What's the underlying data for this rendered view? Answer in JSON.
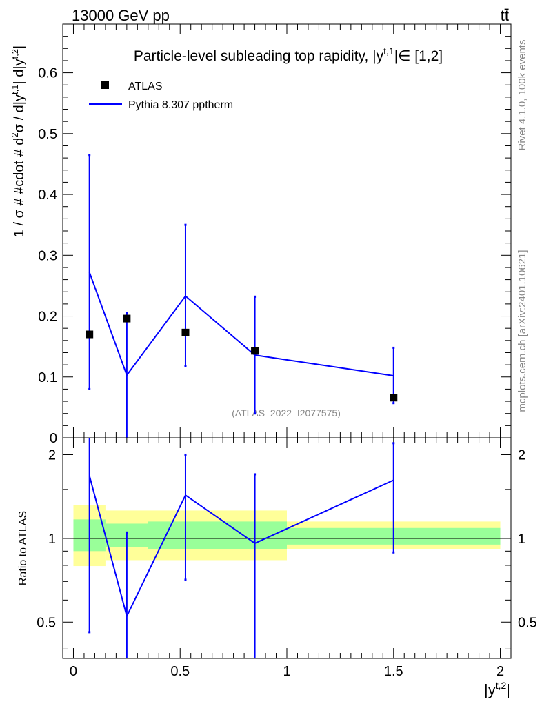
{
  "header": {
    "energy_label": "13000 GeV pp",
    "process_label": "tt̄"
  },
  "side_text": {
    "rivet": "Rivet 4.1.0,  100k events",
    "mcplots": "mcplots.cern.ch [arXiv:2401.10621]"
  },
  "watermark": "(ATLAS_2022_I2077575)",
  "chart_data": [
    {
      "panel": "main",
      "type": "scatter",
      "title": "Particle-level subleading top rapidity, |y^{t,1}|∈ [1,2]",
      "title_parts": {
        "prefix": "Particle-level subleading top rapidity, |y",
        "sup": "t,1",
        "suffix": "|∈ [1,2]"
      },
      "ylabel": "1 / σ # #cdot # d²σ / d|y^{t,1}| d|y^{t,2}|",
      "ylabel_parts": {
        "a": "1 / σ # #cdot # d",
        "sup1": "2",
        "b": "σ / d|y",
        "sup2": "t,1",
        "c": "| d|y",
        "sup3": "t,2",
        "d": "|"
      },
      "xlim": [
        -0.05,
        2.05
      ],
      "ylim": [
        0,
        0.68
      ],
      "yticks": [
        0,
        0.1,
        0.2,
        0.3,
        0.4,
        0.5,
        0.6
      ],
      "ytick_labels": [
        "0",
        "0.1",
        "0.2",
        "0.3",
        "0.4",
        "0.5",
        "0.6"
      ],
      "legend": {
        "position": "top-left",
        "entries": [
          {
            "label": "ATLAS",
            "marker": "square",
            "color": "#000000"
          },
          {
            "label": "Pythia 8.307 pptherm",
            "marker": "line",
            "color": "#0000ff"
          }
        ]
      },
      "data_points": {
        "name": "ATLAS",
        "x": [
          0.075,
          0.25,
          0.525,
          0.85,
          1.5
        ],
        "y": [
          0.17,
          0.196,
          0.173,
          0.143,
          0.066
        ],
        "color": "#000000"
      },
      "series": [
        {
          "name": "Pythia 8.307 pptherm",
          "color": "#0000ff",
          "x": [
            0.075,
            0.25,
            0.525,
            0.85,
            1.5
          ],
          "y": [
            0.272,
            0.103,
            0.233,
            0.136,
            0.102
          ],
          "err_low": [
            0.08,
            -0.02,
            0.118,
            0.04,
            0.057
          ],
          "err_high": [
            0.465,
            0.205,
            0.35,
            0.232,
            0.148
          ]
        }
      ]
    },
    {
      "panel": "ratio",
      "type": "line",
      "ylabel": "Ratio to ATLAS",
      "xlabel": "|y^{t,2}|",
      "xlabel_parts": {
        "a": "|y",
        "sup": "t,2",
        "b": "|"
      },
      "xlim": [
        -0.05,
        2.05
      ],
      "ylim": [
        0.37,
        2.3
      ],
      "log_y": true,
      "xticks": [
        0,
        0.5,
        1,
        1.5,
        2
      ],
      "xtick_labels": [
        "0",
        "0.5",
        "1",
        "1.5",
        "2"
      ],
      "yticks": [
        0.5,
        1,
        2
      ],
      "ytick_labels": [
        "0.5",
        "1",
        "2"
      ],
      "bands": [
        {
          "x0": 0.0,
          "x1": 0.15,
          "yellow": [
            0.795,
            1.32
          ],
          "green": [
            0.9,
            1.17
          ]
        },
        {
          "x0": 0.15,
          "x1": 0.35,
          "yellow": [
            0.835,
            1.26
          ],
          "green": [
            0.93,
            1.13
          ]
        },
        {
          "x0": 0.35,
          "x1": 1.0,
          "yellow": [
            0.835,
            1.26
          ],
          "green": [
            0.915,
            1.15
          ]
        },
        {
          "x0": 1.0,
          "x1": 2.0,
          "yellow": [
            0.915,
            1.15
          ],
          "green": [
            0.95,
            1.09
          ]
        }
      ],
      "series": [
        {
          "name": "Pythia 8.307 pptherm / ATLAS",
          "color": "#0000ff",
          "x": [
            0.075,
            0.25,
            0.525,
            0.85,
            1.5
          ],
          "y": [
            1.68,
            0.525,
            1.43,
            0.96,
            1.62
          ],
          "err_low": [
            0.46,
            0.3,
            0.71,
            0.3,
            0.89
          ],
          "err_high": [
            2.5,
            1.05,
            2.0,
            1.7,
            2.2
          ]
        }
      ]
    }
  ]
}
